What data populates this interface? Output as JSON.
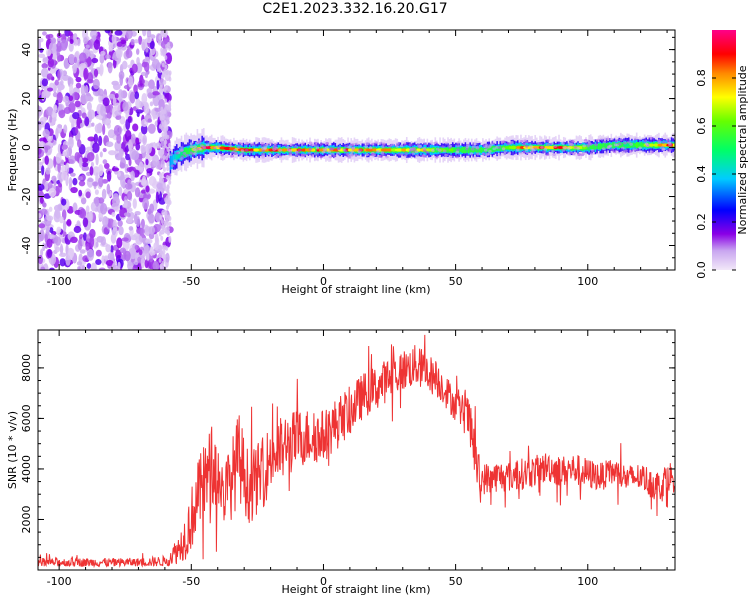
{
  "title": "C2E1.2023.332.16.20.G17",
  "chart_data": [
    {
      "type": "heatmap",
      "title": "C2E1.2023.332.16.20.G17",
      "xlabel": "Height of straight line (km)",
      "ylabel": "Frequency (Hz)",
      "xlim": [
        -108,
        133
      ],
      "ylim": [
        -50,
        48
      ],
      "xticks": [
        -100,
        -50,
        0,
        50,
        100
      ],
      "yticks": [
        -40,
        -20,
        0,
        20,
        40
      ],
      "colorbar": {
        "label": "Normalized spectral amplitude",
        "range": [
          0,
          1
        ],
        "ticks": [
          0.0,
          0.2,
          0.4,
          0.6,
          0.8
        ],
        "colors": [
          "#f2e8f8",
          "#8a00e6",
          "#0000ff",
          "#00ccff",
          "#00ff66",
          "#66ff00",
          "#ffff00",
          "#ff8800",
          "#ff0000",
          "#ff0088"
        ]
      },
      "noise_region": {
        "x": [
          -108,
          -58
        ],
        "frequency": [
          -50,
          48
        ],
        "amplitude": [
          0.0,
          0.25
        ]
      },
      "ridge": {
        "x": [
          -58,
          -55,
          -50,
          -45,
          -40,
          -30,
          -20,
          -10,
          0,
          10,
          20,
          30,
          40,
          50,
          60,
          70,
          80,
          90,
          100,
          110,
          120,
          133
        ],
        "frequency": [
          -6,
          -3,
          -1,
          0,
          0,
          -1,
          -1,
          -1,
          -1,
          -1,
          -1,
          -1,
          -1,
          -1,
          -1,
          0,
          0,
          0,
          0,
          1,
          1,
          1
        ],
        "peak_amplitude": [
          0.35,
          0.45,
          0.6,
          0.95,
          0.95,
          0.95,
          0.95,
          0.95,
          0.95,
          0.95,
          0.85,
          0.8,
          0.75,
          0.6,
          0.55,
          0.8,
          0.95,
          0.95,
          0.6,
          0.55,
          0.7,
          0.95
        ]
      }
    },
    {
      "type": "line",
      "xlabel": "Height of straight line (km)",
      "ylabel": "SNR (10 * v/v)",
      "xlim": [
        -108,
        133
      ],
      "ylim": [
        0,
        9500
      ],
      "xticks": [
        -100,
        -50,
        0,
        50,
        100
      ],
      "yticks": [
        2000,
        4000,
        6000,
        8000
      ],
      "series": [
        {
          "color": "#ee3333",
          "x": [
            -108,
            -100,
            -90,
            -80,
            -70,
            -60,
            -55,
            -52,
            -50,
            -48,
            -45,
            -42,
            -40,
            -38,
            -35,
            -32,
            -30,
            -28,
            -25,
            -22,
            -20,
            -15,
            -10,
            -5,
            0,
            5,
            10,
            15,
            20,
            25,
            30,
            35,
            40,
            45,
            50,
            55,
            57,
            59,
            60,
            65,
            70,
            75,
            80,
            85,
            90,
            95,
            100,
            105,
            110,
            115,
            120,
            125,
            128,
            130,
            133
          ],
          "y": [
            300,
            300,
            300,
            300,
            300,
            350,
            800,
            1400,
            2000,
            2800,
            3500,
            4200,
            3800,
            3000,
            3500,
            4500,
            3800,
            3200,
            3600,
            4000,
            4500,
            4800,
            5200,
            5300,
            5300,
            5800,
            6300,
            6900,
            7200,
            7600,
            7900,
            8100,
            7800,
            7300,
            6500,
            6000,
            4800,
            3500,
            3600,
            3700,
            3700,
            3800,
            3900,
            4100,
            3900,
            4000,
            3800,
            3700,
            3900,
            3600,
            3700,
            3400,
            3300,
            3800,
            3600
          ],
          "spread": [
            250,
            250,
            250,
            250,
            250,
            300,
            800,
            1400,
            1800,
            2000,
            2200,
            2400,
            2000,
            1800,
            2200,
            2600,
            2200,
            2000,
            2000,
            2000,
            2000,
            1900,
            1700,
            1600,
            1500,
            1500,
            1400,
            1300,
            1300,
            1200,
            1200,
            1200,
            1100,
            1000,
            900,
            1200,
            1400,
            1300,
            900,
            900,
            900,
            900,
            900,
            900,
            900,
            900,
            900,
            800,
            800,
            800,
            800,
            900,
            900,
            900,
            800
          ]
        }
      ]
    }
  ]
}
